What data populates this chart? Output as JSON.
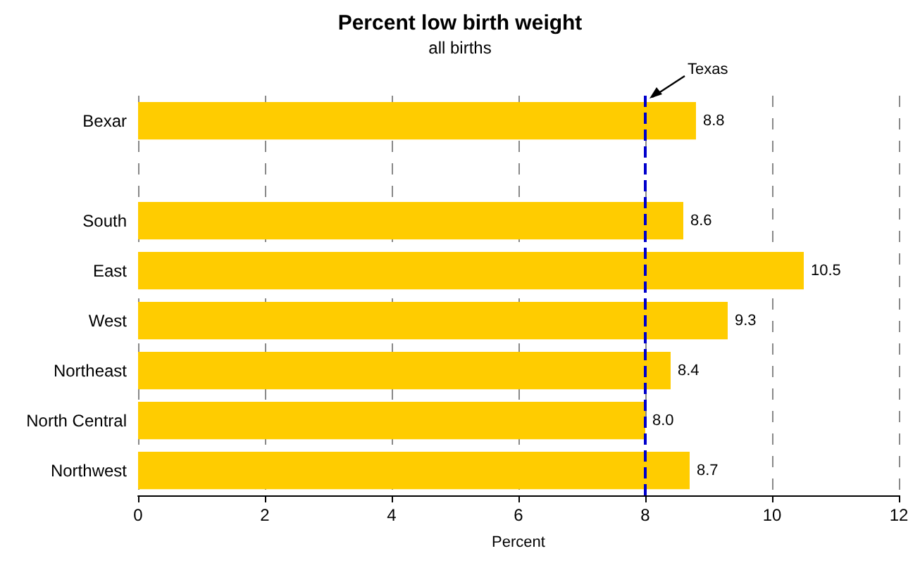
{
  "chart_data": {
    "type": "bar",
    "orientation": "horizontal",
    "title": "Percent low birth weight",
    "subtitle": "all births",
    "xlabel": "Percent",
    "categories": [
      "Bexar",
      null,
      "South",
      "East",
      "West",
      "Northeast",
      "North Central",
      "Northwest"
    ],
    "values": [
      8.8,
      null,
      8.6,
      10.5,
      9.3,
      8.4,
      8.0,
      8.7
    ],
    "value_labels": [
      "8.8",
      null,
      "8.6",
      "10.5",
      "9.3",
      "8.4",
      "8.0",
      "8.7"
    ],
    "colors": [
      "#ffcc00",
      null,
      "#ffcc00",
      "#ffcc00",
      "#ffcc00",
      "#ffcc00",
      "#ffcc00",
      "#ffcc00"
    ],
    "xlim": [
      0,
      12
    ],
    "xticks": [
      0,
      2,
      4,
      6,
      8,
      10,
      12
    ],
    "grid": "x",
    "ref_lines": [
      {
        "axis": "x",
        "value": 8,
        "label": "Texas",
        "color": "#0000cc",
        "line_style": "dashed"
      }
    ]
  }
}
